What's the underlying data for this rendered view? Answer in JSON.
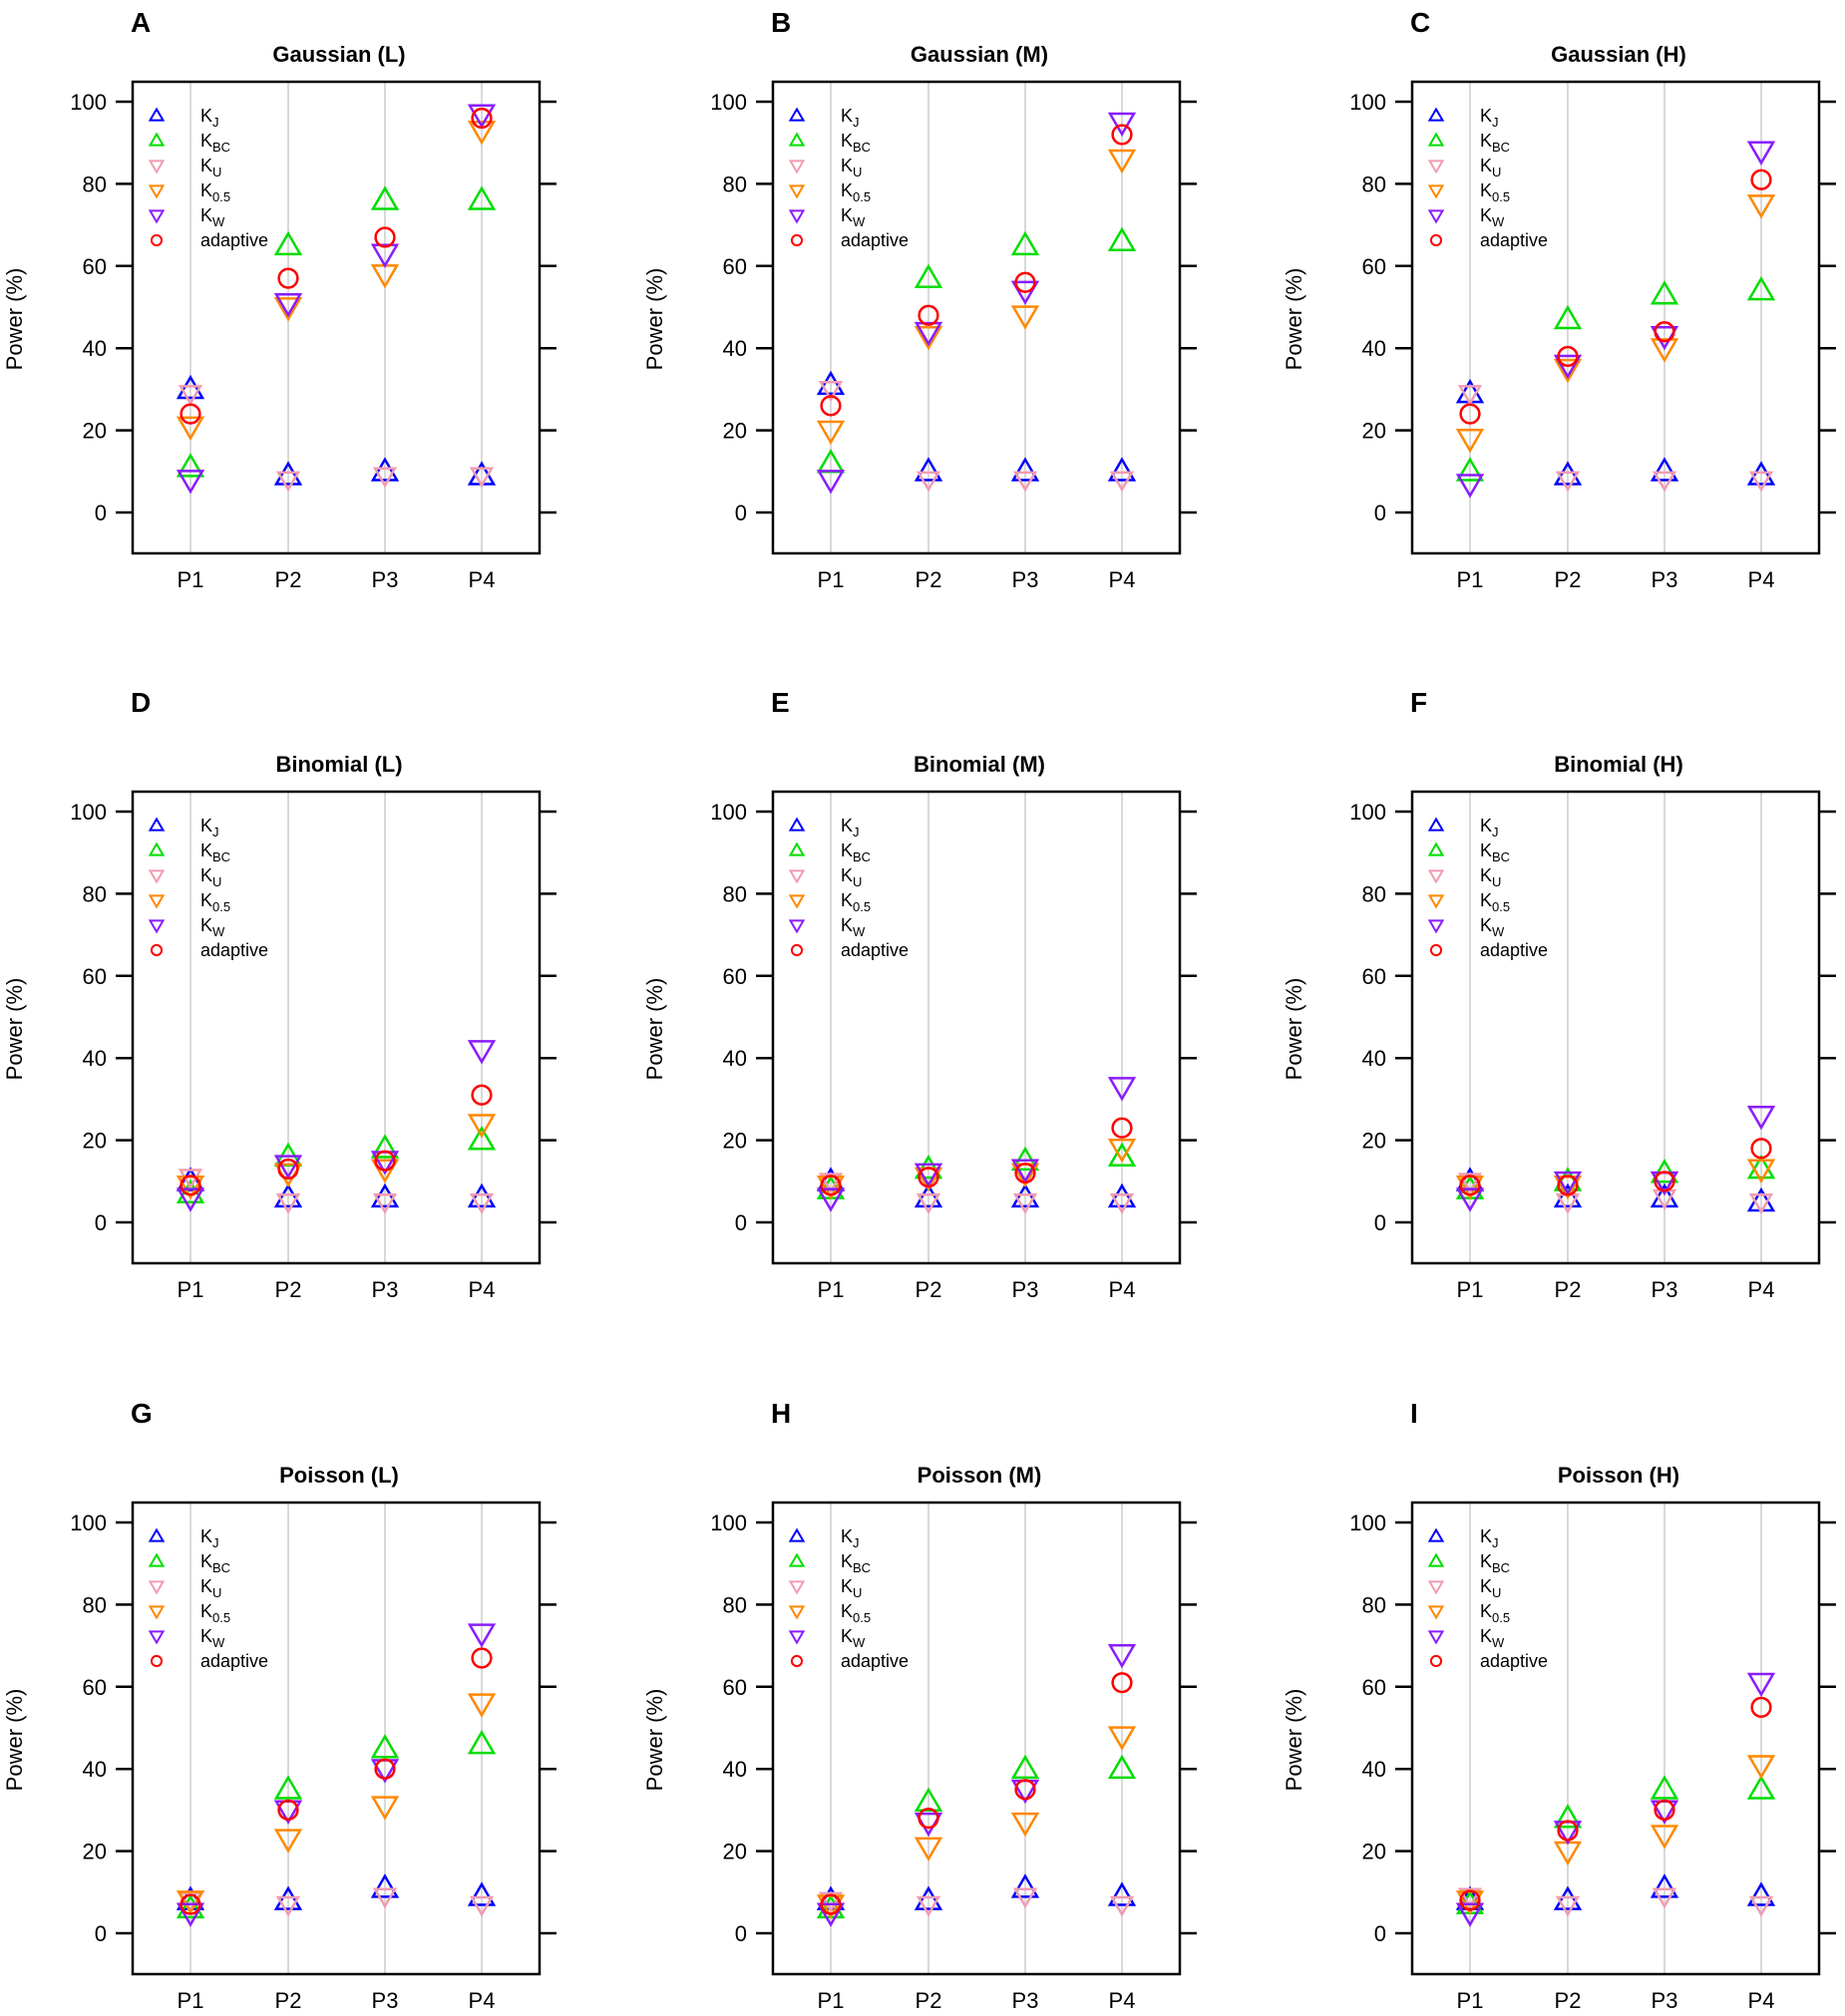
{
  "chart_data": {
    "type": "scatter",
    "layout": "3x3 grid of panels",
    "categories": [
      "P1",
      "P2",
      "P3",
      "P4"
    ],
    "ylabel": "Power (%)",
    "ylim": [
      -10,
      105
    ],
    "yticks": [
      0,
      20,
      40,
      60,
      80,
      100
    ],
    "grid": "vertical lines at categories",
    "legend_placement": "top-left",
    "series_meta": [
      {
        "key": "KJ",
        "main": "K",
        "sub": "J",
        "color": "#0000ff",
        "marker": "triangle-up"
      },
      {
        "key": "KBC",
        "main": "K",
        "sub": "BC",
        "color": "#00dd00",
        "marker": "triangle-up"
      },
      {
        "key": "KU",
        "main": "K",
        "sub": "U",
        "color": "#f19cb0",
        "marker": "triangle-down"
      },
      {
        "key": "K05",
        "main": "K",
        "sub": "0.5",
        "color": "#ff8800",
        "marker": "triangle-down"
      },
      {
        "key": "KW",
        "main": "K",
        "sub": "W",
        "color": "#8a1cff",
        "marker": "triangle-down"
      },
      {
        "key": "adaptive",
        "main": "adaptive",
        "sub": "",
        "color": "#ff0000",
        "marker": "circle"
      }
    ],
    "panels": [
      {
        "letter": "A",
        "title": "Gaussian (L)",
        "series": {
          "KJ": [
            30,
            9,
            10,
            9
          ],
          "KBC": [
            11,
            65,
            76,
            76
          ],
          "KU": [
            29,
            8,
            9,
            9
          ],
          "K05": [
            21,
            50,
            58,
            93
          ],
          "KW": [
            8,
            51,
            63,
            97
          ],
          "adaptive": [
            24,
            57,
            67,
            96
          ]
        }
      },
      {
        "letter": "B",
        "title": "Gaussian (M)",
        "series": {
          "KJ": [
            31,
            10,
            10,
            10
          ],
          "KBC": [
            12,
            57,
            65,
            66
          ],
          "KU": [
            30,
            8,
            8,
            8
          ],
          "K05": [
            20,
            43,
            48,
            86
          ],
          "KW": [
            8,
            44,
            54,
            95
          ],
          "adaptive": [
            26,
            48,
            56,
            92
          ]
        }
      },
      {
        "letter": "C",
        "title": "Gaussian (H)",
        "series": {
          "KJ": [
            29,
            9,
            10,
            9
          ],
          "KBC": [
            10,
            47,
            53,
            54
          ],
          "KU": [
            29,
            8,
            8,
            8
          ],
          "K05": [
            18,
            35,
            40,
            75
          ],
          "KW": [
            7,
            36,
            43,
            88
          ],
          "adaptive": [
            24,
            38,
            44,
            81
          ]
        }
      },
      {
        "letter": "D",
        "title": "Binomial (L)",
        "series": {
          "KJ": [
            10,
            6,
            6,
            6
          ],
          "KBC": [
            7,
            16,
            18,
            20
          ],
          "KU": [
            11,
            5,
            5,
            5
          ],
          "K05": [
            9,
            12,
            13,
            24
          ],
          "KW": [
            6,
            14,
            15,
            42
          ],
          "adaptive": [
            9,
            13,
            15,
            31
          ]
        }
      },
      {
        "letter": "E",
        "title": "Binomial (M)",
        "series": {
          "KJ": [
            10,
            6,
            6,
            6
          ],
          "KBC": [
            8,
            13,
            15,
            16
          ],
          "KU": [
            10,
            5,
            5,
            5
          ],
          "K05": [
            9,
            11,
            12,
            18
          ],
          "KW": [
            6,
            12,
            13,
            33
          ],
          "adaptive": [
            9,
            11,
            12,
            23
          ]
        }
      },
      {
        "letter": "F",
        "title": "Binomial (H)",
        "series": {
          "KJ": [
            10,
            6,
            6,
            5
          ],
          "KBC": [
            8,
            10,
            12,
            13
          ],
          "KU": [
            10,
            5,
            6,
            5
          ],
          "K05": [
            9,
            9,
            10,
            13
          ],
          "KW": [
            6,
            10,
            10,
            26
          ],
          "adaptive": [
            9,
            9,
            10,
            18
          ]
        }
      },
      {
        "letter": "G",
        "title": "Poisson (L)",
        "series": {
          "KJ": [
            8,
            8,
            11,
            9
          ],
          "KBC": [
            6,
            35,
            45,
            46
          ],
          "KU": [
            8,
            7,
            9,
            7
          ],
          "K05": [
            8,
            23,
            31,
            56
          ],
          "KW": [
            5,
            30,
            40,
            73
          ],
          "adaptive": [
            7,
            30,
            40,
            67
          ]
        }
      },
      {
        "letter": "H",
        "title": "Poisson (M)",
        "series": {
          "KJ": [
            8,
            8,
            11,
            9
          ],
          "KBC": [
            6,
            32,
            40,
            40
          ],
          "KU": [
            8,
            7,
            9,
            7
          ],
          "K05": [
            7,
            21,
            27,
            48
          ],
          "KW": [
            5,
            27,
            35,
            68
          ],
          "adaptive": [
            7,
            28,
            35,
            61
          ]
        }
      },
      {
        "letter": "I",
        "title": "Poisson (H)",
        "series": {
          "KJ": [
            8,
            8,
            11,
            9
          ],
          "KBC": [
            7,
            28,
            35,
            35
          ],
          "KU": [
            9,
            7,
            9,
            7
          ],
          "K05": [
            8,
            20,
            24,
            41
          ],
          "KW": [
            5,
            25,
            30,
            61
          ],
          "adaptive": [
            8,
            25,
            30,
            55
          ]
        }
      }
    ]
  }
}
